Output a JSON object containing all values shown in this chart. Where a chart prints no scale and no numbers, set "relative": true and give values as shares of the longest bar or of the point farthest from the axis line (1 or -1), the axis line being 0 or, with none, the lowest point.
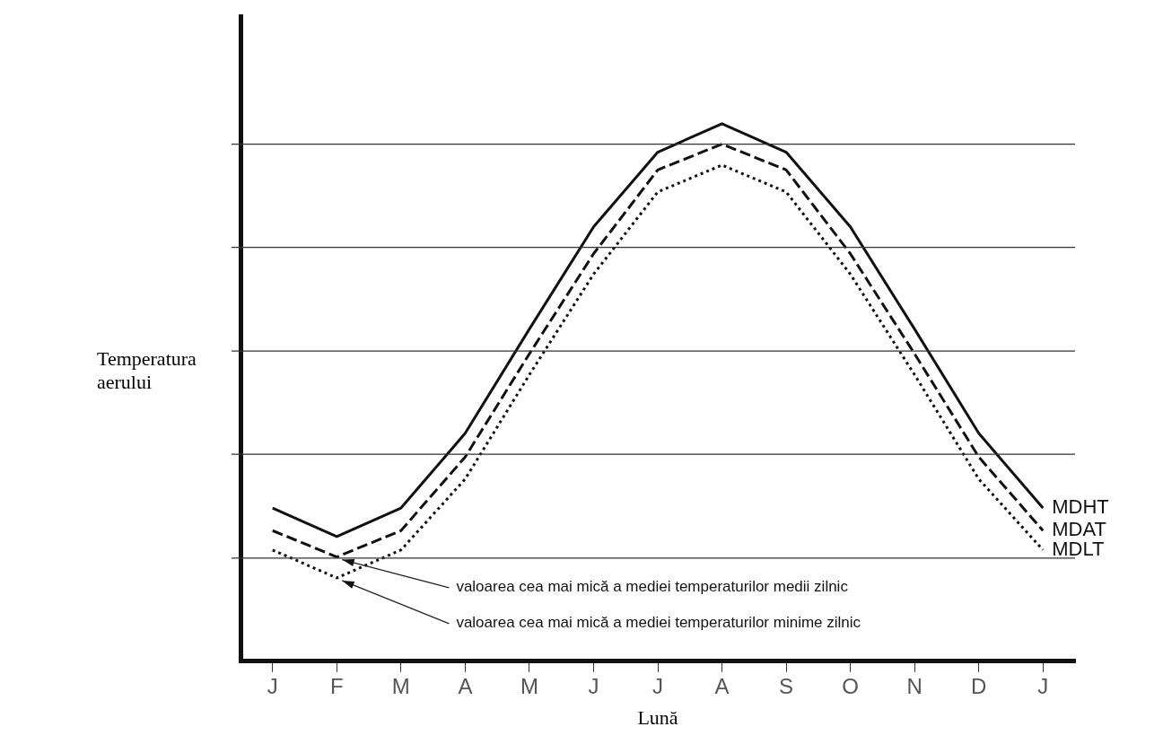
{
  "chart_data": {
    "type": "line",
    "relative": true,
    "xlabel": "Lună",
    "ylabel": "Temperatura aerului",
    "legend": false,
    "ref_lines": [
      {
        "axis": "y",
        "value": 0.192,
        "color": "#333333"
      },
      {
        "axis": "y",
        "value": 0.385,
        "color": "#333333"
      },
      {
        "axis": "y",
        "value": 0.577,
        "color": "#333333"
      },
      {
        "axis": "y",
        "value": 0.77,
        "color": "#333333"
      },
      {
        "axis": "y",
        "value": 0.962,
        "color": "#333333"
      }
    ],
    "marker": "none",
    "categories": [
      "J",
      "F",
      "M",
      "A",
      "M",
      "J",
      "J",
      "A",
      "S",
      "O",
      "N",
      "D",
      "J"
    ],
    "series": [
      {
        "name": "MDHT",
        "color": "#111111",
        "line_style": "solid",
        "values": [
          0.285,
          0.232,
          0.285,
          0.424,
          0.618,
          0.808,
          0.947,
          1,
          0.947,
          0.808,
          0.618,
          0.424,
          0.285
        ]
      },
      {
        "name": "MDAT",
        "color": "#111111",
        "line_style": "dashed",
        "values": [
          0.243,
          0.194,
          0.243,
          0.38,
          0.572,
          0.758,
          0.914,
          0.962,
          0.914,
          0.758,
          0.572,
          0.38,
          0.243
        ]
      },
      {
        "name": "MDLT",
        "color": "#111111",
        "line_style": "dotted",
        "values": [
          0.207,
          0.155,
          0.207,
          0.339,
          0.533,
          0.72,
          0.873,
          0.923,
          0.873,
          0.72,
          0.533,
          0.339,
          0.207
        ]
      }
    ],
    "annotations": [
      {
        "text": "valoarea cea mai mică a mediei temperaturilor medii zilnic",
        "x": "F",
        "y": 0.194
      },
      {
        "text": "valoarea cea mai mică a mediei temperaturilor minime zilnic",
        "x": "F",
        "y": 0.155
      }
    ]
  }
}
